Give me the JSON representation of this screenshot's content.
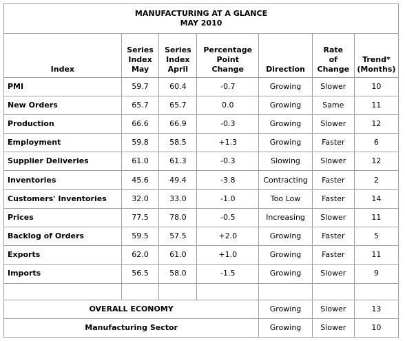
{
  "title": {
    "line1": "MANUFACTURING AT A GLANCE",
    "line2": "MAY 2010"
  },
  "headers": {
    "index": "Index",
    "series_may": [
      "Series",
      "Index",
      "May"
    ],
    "series_april": [
      "Series",
      "Index",
      "April"
    ],
    "pct_change": [
      "Percentage",
      "Point",
      "Change"
    ],
    "direction": "Direction",
    "rate": [
      "Rate",
      "of",
      "Change"
    ],
    "trend": [
      "Trend*",
      "(Months)"
    ]
  },
  "rows": [
    {
      "index": "PMI",
      "may": "59.7",
      "april": "60.4",
      "change": "-0.7",
      "direction": "Growing",
      "rate": "Slower",
      "trend": "10"
    },
    {
      "index": "New Orders",
      "may": "65.7",
      "april": "65.7",
      "change": "0.0",
      "direction": "Growing",
      "rate": "Same",
      "trend": "11"
    },
    {
      "index": "Production",
      "may": "66.6",
      "april": "66.9",
      "change": "-0.3",
      "direction": "Growing",
      "rate": "Slower",
      "trend": "12"
    },
    {
      "index": "Employment",
      "may": "59.8",
      "april": "58.5",
      "change": "+1.3",
      "direction": "Growing",
      "rate": "Faster",
      "trend": "6"
    },
    {
      "index": "Supplier Deliveries",
      "may": "61.0",
      "april": "61.3",
      "change": "-0.3",
      "direction": "Slowing",
      "rate": "Slower",
      "trend": "12"
    },
    {
      "index": "Inventories",
      "may": "45.6",
      "april": "49.4",
      "change": "-3.8",
      "direction": "Contracting",
      "rate": "Faster",
      "trend": "2"
    },
    {
      "index": "Customers' Inventories",
      "may": "32.0",
      "april": "33.0",
      "change": "-1.0",
      "direction": "Too Low",
      "rate": "Faster",
      "trend": "14"
    },
    {
      "index": "Prices",
      "may": "77.5",
      "april": "78.0",
      "change": "-0.5",
      "direction": "Increasing",
      "rate": "Slower",
      "trend": "11"
    },
    {
      "index": "Backlog of Orders",
      "may": "59.5",
      "april": "57.5",
      "change": "+2.0",
      "direction": "Growing",
      "rate": "Faster",
      "trend": "5"
    },
    {
      "index": "Exports",
      "may": "62.0",
      "april": "61.0",
      "change": "+1.0",
      "direction": "Growing",
      "rate": "Faster",
      "trend": "11"
    },
    {
      "index": "Imports",
      "may": "56.5",
      "april": "58.0",
      "change": "-1.5",
      "direction": "Growing",
      "rate": "Slower",
      "trend": "9"
    }
  ],
  "summary": [
    {
      "label": "OVERALL ECONOMY",
      "direction": "Growing",
      "rate": "Slower",
      "trend": "13"
    },
    {
      "label": "Manufacturing Sector",
      "direction": "Growing",
      "rate": "Slower",
      "trend": "10"
    }
  ]
}
